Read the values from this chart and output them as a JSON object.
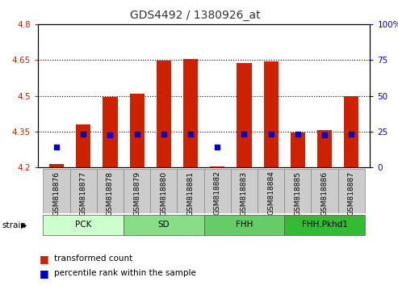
{
  "title": "GDS4492 / 1380926_at",
  "samples": [
    "GSM818876",
    "GSM818877",
    "GSM818878",
    "GSM818879",
    "GSM818880",
    "GSM818881",
    "GSM818882",
    "GSM818883",
    "GSM818884",
    "GSM818885",
    "GSM818886",
    "GSM818887"
  ],
  "group_spans": [
    {
      "name": "PCK",
      "start": 0,
      "end": 3,
      "color": "#ccffcc"
    },
    {
      "name": "SD",
      "start": 3,
      "end": 6,
      "color": "#88dd88"
    },
    {
      "name": "FHH",
      "start": 6,
      "end": 9,
      "color": "#66cc66"
    },
    {
      "name": "FHH.Pkhd1",
      "start": 9,
      "end": 12,
      "color": "#33bb33"
    }
  ],
  "red_bar_top": [
    4.215,
    4.38,
    4.495,
    4.51,
    4.648,
    4.655,
    4.205,
    4.638,
    4.645,
    4.345,
    4.357,
    4.5
  ],
  "blue_dot_y": [
    4.285,
    4.338,
    4.337,
    4.338,
    4.34,
    4.338,
    4.285,
    4.338,
    4.34,
    4.338,
    4.336,
    4.338
  ],
  "ymin": 4.2,
  "ymax": 4.8,
  "yticks_left": [
    4.2,
    4.35,
    4.5,
    4.65,
    4.8
  ],
  "yticks_right_vals": [
    0,
    25,
    50,
    75,
    100
  ],
  "bar_color": "#cc2200",
  "dot_color": "#0000cc",
  "bar_bottom": 4.2,
  "bar_width": 0.55,
  "legend_red": "transformed count",
  "legend_blue": "percentile rank within the sample",
  "left_axis_color": "#cc2200",
  "right_axis_color": "#0000cc",
  "xtick_bg": "#cccccc"
}
